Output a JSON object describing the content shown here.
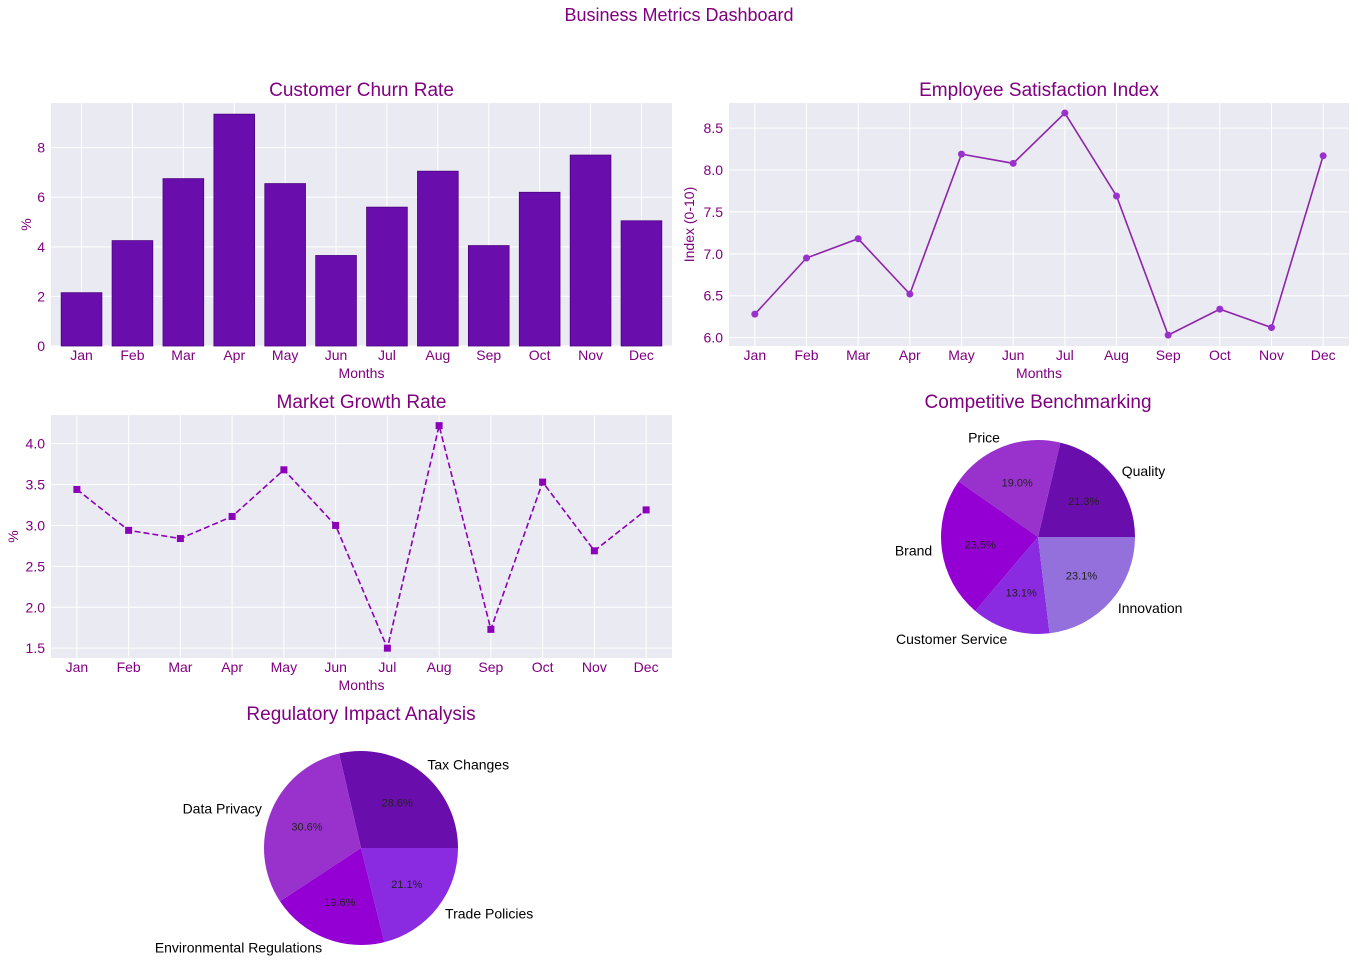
{
  "page": {
    "title": "Business Metrics Dashboard"
  },
  "theme": {
    "text_color": "#800080",
    "plot_bg": "#eaeaf2",
    "grid_color": "#ffffff",
    "label_color": "#000000",
    "bar_color": "#6a0dad",
    "line_color": "#8e24aa",
    "marker_color": "#9932cc",
    "dashed_color": "#8b00b8",
    "pie_colors": [
      "#6a0dad",
      "#9932cc",
      "#9400d3",
      "#8a2be2",
      "#9370db"
    ]
  },
  "chart_data": [
    {
      "id": "churn",
      "type": "bar",
      "title": "Customer Churn Rate",
      "xlabel": "Months",
      "ylabel": "%",
      "categories": [
        "Jan",
        "Feb",
        "Mar",
        "Apr",
        "May",
        "Jun",
        "Jul",
        "Aug",
        "Sep",
        "Oct",
        "Nov",
        "Dec"
      ],
      "values": [
        2.15,
        4.25,
        6.75,
        9.35,
        6.55,
        3.65,
        5.6,
        7.05,
        4.05,
        6.2,
        7.7,
        5.05
      ],
      "ylim": [
        0,
        9.8
      ],
      "yticks": [
        0,
        2,
        4,
        6,
        8
      ]
    },
    {
      "id": "satisfaction",
      "type": "line",
      "title": "Employee Satisfaction Index",
      "xlabel": "Months",
      "ylabel": "Index (0-10)",
      "categories": [
        "Jan",
        "Feb",
        "Mar",
        "Apr",
        "May",
        "Jun",
        "Jul",
        "Aug",
        "Sep",
        "Oct",
        "Nov",
        "Dec"
      ],
      "values": [
        6.28,
        6.95,
        7.18,
        6.52,
        8.19,
        8.08,
        8.68,
        7.69,
        6.03,
        6.34,
        6.12,
        8.17
      ],
      "ylim": [
        5.9,
        8.8
      ],
      "yticks": [
        "6.0",
        "6.5",
        "7.0",
        "7.5",
        "8.0",
        "8.5"
      ]
    },
    {
      "id": "growth",
      "type": "line",
      "line_style": "dashed",
      "marker": "square",
      "title": "Market Growth Rate",
      "xlabel": "Months",
      "ylabel": "%",
      "categories": [
        "Jan",
        "Feb",
        "Mar",
        "Apr",
        "May",
        "Jun",
        "Jul",
        "Aug",
        "Sep",
        "Oct",
        "Nov",
        "Dec"
      ],
      "values": [
        3.44,
        2.94,
        2.84,
        3.11,
        3.68,
        3.0,
        1.5,
        4.22,
        1.73,
        3.53,
        2.69,
        3.19
      ],
      "ylim": [
        1.38,
        4.35
      ],
      "yticks": [
        "1.5",
        "2.0",
        "2.5",
        "3.0",
        "3.5",
        "4.0"
      ]
    },
    {
      "id": "benchmark",
      "type": "pie",
      "title": "Competitive Benchmarking",
      "labels": [
        "Quality",
        "Price",
        "Brand",
        "Customer Service",
        "Innovation"
      ],
      "values": [
        21.3,
        19.0,
        23.5,
        13.1,
        23.1
      ],
      "pct_labels": [
        "21.3%",
        "19.0%",
        "23.5%",
        "13.1%",
        "23.1%"
      ]
    },
    {
      "id": "regulatory",
      "type": "pie",
      "title": "Regulatory Impact Analysis",
      "labels": [
        "Tax Changes",
        "Data Privacy",
        "Environmental Regulations",
        "Trade Policies"
      ],
      "values": [
        28.6,
        30.6,
        19.6,
        21.1
      ],
      "pct_labels": [
        "28.6%",
        "30.6%",
        "19.6%",
        "21.1%"
      ]
    }
  ]
}
